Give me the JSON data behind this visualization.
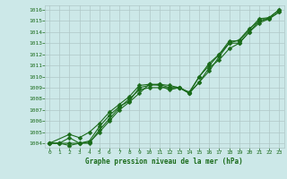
{
  "xlabel": "Graphe pression niveau de la mer (hPa)",
  "bg_color": "#cce8e8",
  "grid_color": "#b0c8c8",
  "line_color": "#1a6b1a",
  "xlim": [
    -0.5,
    23.5
  ],
  "ylim": [
    1003.6,
    1016.4
  ],
  "yticks": [
    1004,
    1005,
    1006,
    1007,
    1008,
    1009,
    1010,
    1011,
    1012,
    1013,
    1014,
    1015,
    1016
  ],
  "xticks": [
    0,
    1,
    2,
    3,
    4,
    5,
    6,
    7,
    8,
    9,
    10,
    11,
    12,
    13,
    14,
    15,
    16,
    17,
    18,
    19,
    20,
    21,
    22,
    23
  ],
  "line1_x": [
    0,
    1,
    2,
    3,
    4,
    5,
    6,
    7,
    8,
    9,
    10,
    11,
    12,
    13,
    14,
    15,
    16,
    17,
    18,
    19,
    20,
    21,
    22,
    23
  ],
  "line1_y": [
    1004.0,
    1004.0,
    1003.8,
    1004.0,
    1004.1,
    1005.0,
    1006.0,
    1007.0,
    1007.7,
    1008.5,
    1009.3,
    1009.2,
    1008.8,
    1009.0,
    1008.5,
    1009.5,
    1010.5,
    1011.8,
    1013.0,
    1013.0,
    1014.0,
    1015.0,
    1015.2,
    1015.8
  ],
  "line2_x": [
    0,
    1,
    2,
    3,
    4,
    5,
    6,
    7,
    8,
    9,
    10,
    11,
    12,
    13,
    14,
    15,
    16,
    17,
    18,
    19,
    20,
    21,
    22,
    23
  ],
  "line2_y": [
    1004.0,
    1004.0,
    1004.5,
    1004.0,
    1004.2,
    1005.5,
    1006.5,
    1007.3,
    1007.8,
    1009.0,
    1009.2,
    1009.3,
    1009.0,
    1009.0,
    1008.5,
    1010.0,
    1011.0,
    1012.0,
    1013.2,
    1013.2,
    1014.2,
    1015.2,
    1015.3,
    1016.0
  ],
  "line3_x": [
    0,
    2,
    3,
    4,
    5,
    6,
    7,
    8,
    9,
    10,
    11,
    12,
    13,
    14,
    15,
    16,
    17,
    18,
    19,
    20,
    21,
    22,
    23
  ],
  "line3_y": [
    1004.0,
    1004.8,
    1004.5,
    1005.0,
    1005.8,
    1006.8,
    1007.5,
    1008.2,
    1009.2,
    1009.3,
    1009.3,
    1009.2,
    1009.0,
    1008.6,
    1010.0,
    1011.2,
    1012.0,
    1013.0,
    1013.3,
    1014.3,
    1015.0,
    1015.3,
    1016.0
  ],
  "line4_x": [
    0,
    1,
    2,
    3,
    4,
    5,
    6,
    7,
    8,
    9,
    10,
    11,
    12,
    13,
    14,
    15,
    16,
    17,
    18,
    19,
    20,
    21,
    22,
    23
  ],
  "line4_y": [
    1004.0,
    1004.0,
    1004.0,
    1004.0,
    1004.0,
    1005.2,
    1006.2,
    1007.2,
    1008.0,
    1008.8,
    1009.0,
    1009.0,
    1009.0,
    1009.0,
    1008.5,
    1009.5,
    1010.8,
    1011.5,
    1012.5,
    1013.0,
    1014.0,
    1014.8,
    1015.2,
    1015.8
  ]
}
